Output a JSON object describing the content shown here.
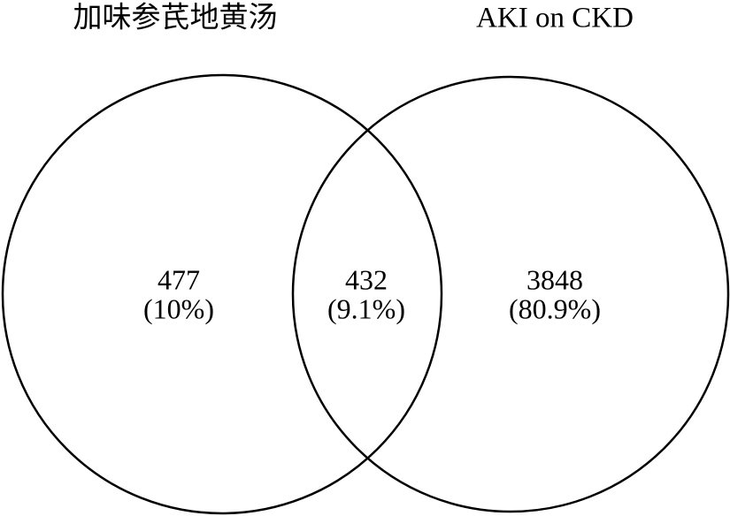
{
  "chart_data": {
    "type": "venn",
    "sets": [
      {
        "name": "加味参芪地黄汤"
      },
      {
        "name": "AKI on CKD"
      }
    ],
    "regions": [
      "left",
      "both",
      "right"
    ],
    "values": [
      477,
      432,
      3848
    ],
    "percents": [
      10,
      9.1,
      80.9
    ],
    "percent_labels": [
      "(10%)",
      "(9.1%)",
      "(80.9%)"
    ]
  }
}
